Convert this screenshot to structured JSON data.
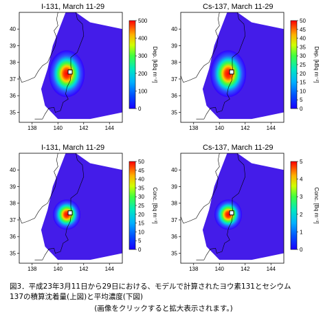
{
  "panels": [
    {
      "id": "i131-deposition",
      "title": "I-131, March 11-29",
      "colorbar_label": "Dep. [kBq m⁻²]",
      "colorbar_ticks": [
        "0",
        "100",
        "200",
        "300",
        "400",
        "500"
      ],
      "plume": "deposition-i131"
    },
    {
      "id": "cs137-deposition",
      "title": "Cs-137, March 11-29",
      "colorbar_label": "Dep. [kBq m⁻²]",
      "colorbar_ticks": [
        "0",
        "5",
        "10",
        "15",
        "20",
        "25",
        "30",
        "35",
        "40",
        "45",
        "50"
      ],
      "plume": "deposition-cs137"
    },
    {
      "id": "i131-concentration",
      "title": "I-131, March 11-29",
      "colorbar_label": "Conc. [Bq m⁻³]",
      "colorbar_ticks": [
        "0",
        "5",
        "10",
        "15",
        "20",
        "25",
        "30",
        "35",
        "40",
        "45",
        "50"
      ],
      "plume": "concentration"
    },
    {
      "id": "cs137-concentration",
      "title": "Cs-137, March 11-29",
      "colorbar_label": "Conc. [Bq m⁻³]",
      "colorbar_ticks": [
        "0",
        "1",
        "2",
        "3",
        "4",
        "5"
      ],
      "plume": "concentration"
    }
  ],
  "axes": {
    "x_ticks": [
      "138",
      "140",
      "142",
      "144"
    ],
    "y_ticks": [
      "35",
      "36",
      "37",
      "38",
      "39",
      "40"
    ]
  },
  "colors": {
    "background_land": "#ffffff",
    "low": "#2a00ff",
    "mid": "#00e0e0",
    "high": "#ff0000"
  },
  "caption": {
    "line1": "図3．平成23年3月11日から29日における、モデルで計算されたヨウ素131とセシウム",
    "line2": "137の積算沈着量(上図)と平均濃度(下図)",
    "line3": "(画像をクリックすると拡大表示されます。)"
  }
}
